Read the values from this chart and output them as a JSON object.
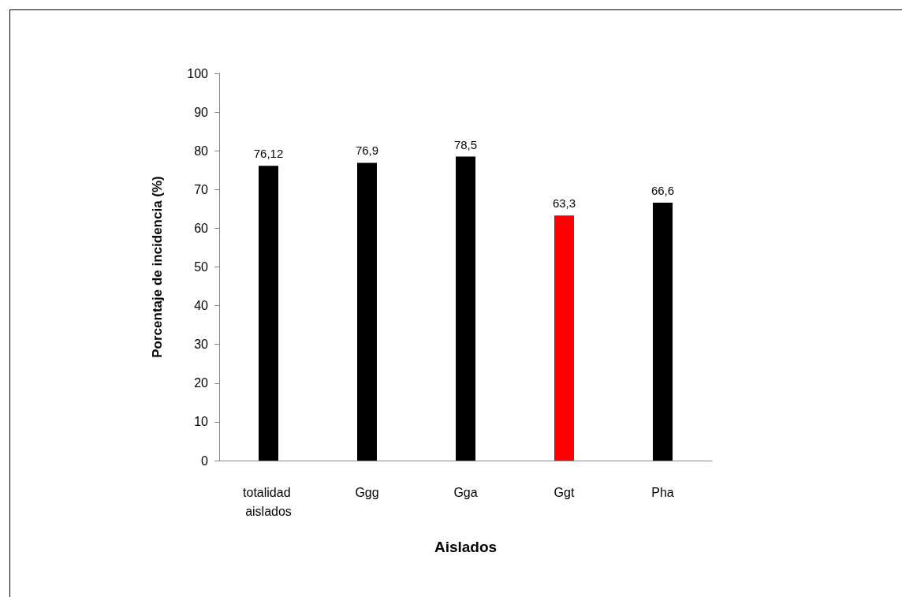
{
  "chart_data": {
    "type": "bar",
    "xlabel": "Aislados",
    "ylabel": "Porcentaje de incidencia (%)",
    "categories": [
      "totalidad aislados",
      "Ggg",
      "Gga",
      "Ggt",
      "Pha"
    ],
    "values": [
      76.12,
      76.9,
      78.5,
      63.3,
      66.6
    ],
    "colors": [
      "#000000",
      "#000000",
      "#000000",
      "#ff0000",
      "#000000"
    ],
    "value_labels": [
      "76,12",
      "76,9",
      "78,5",
      "63,3",
      "66,6"
    ],
    "ylim": [
      0,
      100
    ],
    "yticks": [
      0,
      10,
      20,
      30,
      40,
      50,
      60,
      70,
      80,
      90,
      100
    ],
    "grid": false
  }
}
